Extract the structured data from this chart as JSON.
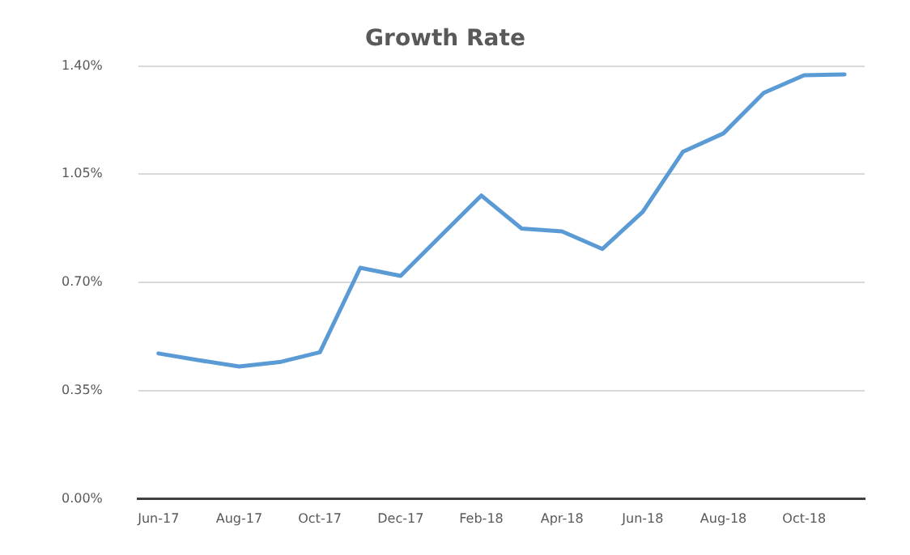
{
  "chart_data": {
    "type": "line",
    "title": "Growth Rate",
    "categories": [
      "Jun-17",
      null,
      "Aug-17",
      null,
      "Oct-17",
      null,
      "Dec-17",
      null,
      "Feb-18",
      null,
      "Apr-18",
      null,
      "Jun-18",
      null,
      "Aug-18",
      null,
      "Oct-18",
      null
    ],
    "series": [
      {
        "color": "#5b9bd5",
        "values": [
          0.47,
          0.448,
          0.428,
          0.442,
          0.474,
          0.747,
          0.721,
          0.851,
          0.981,
          0.874,
          0.865,
          0.808,
          0.928,
          1.123,
          1.182,
          1.313,
          1.37,
          1.373
        ]
      }
    ],
    "ylim": [
      0,
      1.4
    ],
    "yticks": [
      {
        "value": 0,
        "label": "0.00%"
      },
      {
        "value": 0.35,
        "label": "0.35%"
      },
      {
        "value": 0.7,
        "label": "0.70%"
      },
      {
        "value": 1.05,
        "label": "1.05%"
      },
      {
        "value": 1.4,
        "label": "1.40%"
      }
    ],
    "grid": "y",
    "marker": "none",
    "line_style": "solid",
    "legend": false
  }
}
